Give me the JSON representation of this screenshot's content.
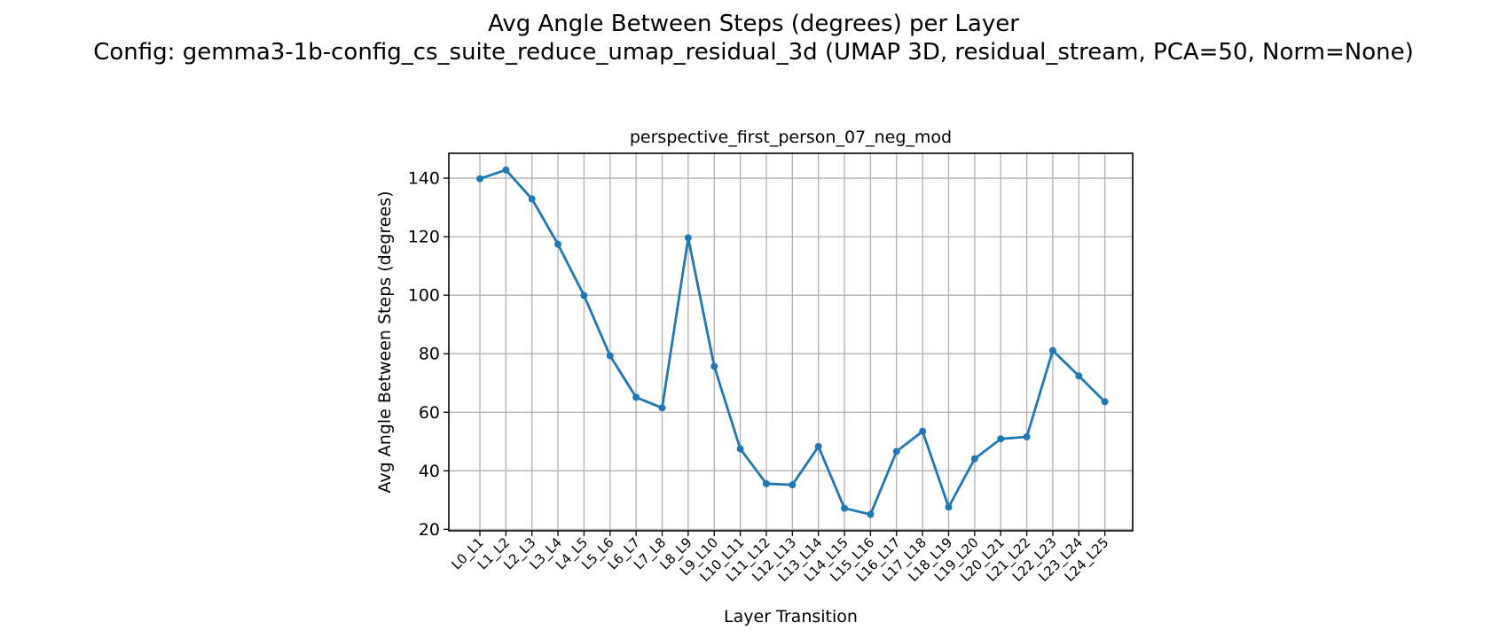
{
  "figure": {
    "title_line1": "Avg Angle Between Steps (degrees) per Layer",
    "title_line2": "Config: gemma3-1b-config_cs_suite_reduce_umap_residual_3d (UMAP 3D, residual_stream, PCA=50, Norm=None)"
  },
  "chart_data": {
    "type": "line",
    "title": "perspective_first_person_07_neg_mod",
    "xlabel": "Layer Transition",
    "ylabel": "Avg Angle Between Steps (degrees)",
    "categories": [
      "L0_L1",
      "L1_L2",
      "L2_L3",
      "L3_L4",
      "L4_L5",
      "L5_L6",
      "L6_L7",
      "L7_L8",
      "L8_L9",
      "L9_L10",
      "L10_L11",
      "L11_L12",
      "L12_L13",
      "L13_L14",
      "L14_L15",
      "L15_L16",
      "L16_L17",
      "L17_L18",
      "L18_L19",
      "L19_L20",
      "L20_L21",
      "L21_L22",
      "L22_L23",
      "L23_L24",
      "L24_L25"
    ],
    "series": [
      {
        "values": [
          139.8,
          142.8,
          132.9,
          117.4,
          99.9,
          79.3,
          65.1,
          61.5,
          119.6,
          75.7,
          47.5,
          35.6,
          35.2,
          48.3,
          27.2,
          25.1,
          46.6,
          53.5,
          27.6,
          44.1,
          50.9,
          51.6,
          81.1,
          72.4,
          63.6
        ],
        "color": "#1f77b4"
      }
    ],
    "ylim": [
      19.5,
      148.5
    ],
    "yticks": [
      20,
      40,
      60,
      80,
      100,
      120,
      140
    ],
    "grid": true,
    "marker": "circle"
  }
}
